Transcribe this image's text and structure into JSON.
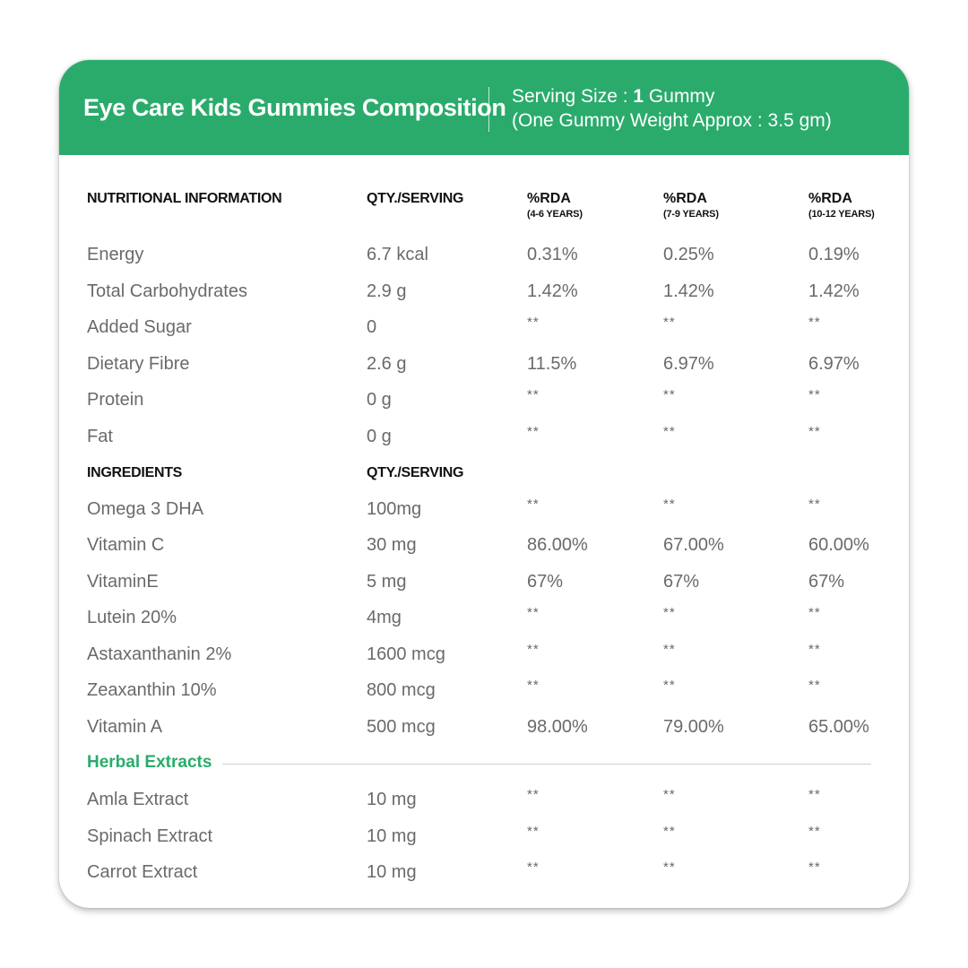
{
  "header": {
    "title": "Eye Care Kids Gummies Composition",
    "serving_prefix": "Serving Size : ",
    "serving_number": "1",
    "serving_unit": " Gummy",
    "gummy_weight": "(One Gummy Weight Approx : 3.5 gm)"
  },
  "colors": {
    "accent": "#2aab6c",
    "header_text": "#ffffff",
    "body_text": "#6a6a6a",
    "heading_text": "#111111"
  },
  "nutrition_header": {
    "col1": "NUTRITIONAL INFORMATION",
    "col2": "QTY./SERVING",
    "rda1": "%RDA",
    "rda1_sub": "(4-6 YEARS)",
    "rda2": "%RDA",
    "rda2_sub": "(7-9 YEARS)",
    "rda3": "%RDA",
    "rda3_sub": "(10-12 YEARS)"
  },
  "nutrition_rows": [
    [
      "Energy",
      "6.7 kcal",
      "0.31%",
      "0.25%",
      "0.19%"
    ],
    [
      "Total Carbohydrates",
      "2.9 g",
      "1.42%",
      "1.42%",
      "1.42%"
    ],
    [
      "Added Sugar",
      "0",
      "**",
      "**",
      "**"
    ],
    [
      "Dietary Fibre",
      "2.6 g",
      "11.5%",
      "6.97%",
      "6.97%"
    ],
    [
      "Protein",
      "0 g",
      "**",
      "**",
      "**"
    ],
    [
      "Fat",
      "0 g",
      "**",
      "**",
      "**"
    ]
  ],
  "ingredients_header": {
    "col1": "INGREDIENTS",
    "col2": "QTY./SERVING"
  },
  "ingredient_rows": [
    [
      "Omega 3 DHA",
      "100mg",
      "**",
      "**",
      "**"
    ],
    [
      "Vitamin C",
      "30 mg",
      "86.00%",
      "67.00%",
      "60.00%"
    ],
    [
      "VitaminE",
      "5 mg",
      "67%",
      "67%",
      "67%"
    ],
    [
      "Lutein 20%",
      "4mg",
      "**",
      "**",
      "**"
    ],
    [
      "Astaxanthanin 2%",
      "1600 mcg",
      "**",
      "**",
      "**"
    ],
    [
      "Zeaxanthin 10%",
      "800 mcg",
      "**",
      "**",
      "**"
    ],
    [
      "Vitamin A",
      "500 mcg",
      "98.00%",
      "79.00%",
      "65.00%"
    ]
  ],
  "herbal": {
    "label": "Herbal Extracts",
    "rows": [
      [
        "Amla Extract",
        "10 mg",
        "**",
        "**",
        "**"
      ],
      [
        "Spinach Extract",
        "10 mg",
        "**",
        "**",
        "**"
      ],
      [
        "Carrot Extract",
        "10 mg",
        "**",
        "**",
        "**"
      ]
    ]
  }
}
